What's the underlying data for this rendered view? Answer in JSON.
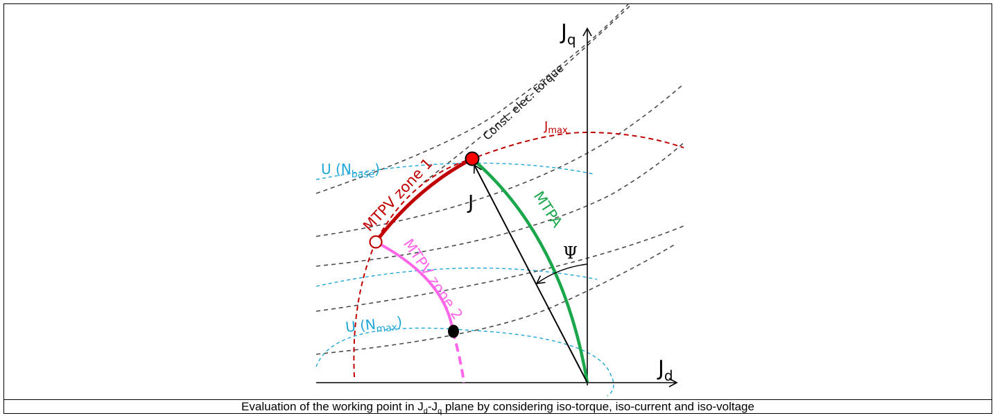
{
  "figure": {
    "axis_labels": {
      "q_main": "J",
      "q_sub": "q",
      "d_main": "J",
      "d_sub": "d"
    },
    "vector_label": "J",
    "angle_label": "Ψ",
    "curve_labels": {
      "torque": "Const. elec. torque",
      "jmax_main": "J",
      "jmax_sub": "max",
      "u_base_main": "U (N",
      "u_base_sub": "base",
      "u_base_end": ")",
      "u_max_main": "U (N",
      "u_max_sub": "max",
      "u_max_end": ")",
      "mtpv_zone1": "MTPV zone 1",
      "mtpv_zone2": "MTPV zone 2",
      "mtpa": "MTPA"
    },
    "colors": {
      "torque": "#4a4a4a",
      "jmax": "#c00000",
      "voltage": "#1ea6d6",
      "mtpv_zone1": "#c00000",
      "mtpv_zone2": "#ff66e8",
      "mtpa": "#1aa64a",
      "axis": "#000000",
      "point_red": "#ff0000"
    }
  },
  "caption": {
    "pre": "Evaluation of the working point in J",
    "sub_d": "d",
    "mid": "-J",
    "sub_q": "q",
    "post": " plane by considering iso-torque, iso-current and iso-voltage"
  }
}
